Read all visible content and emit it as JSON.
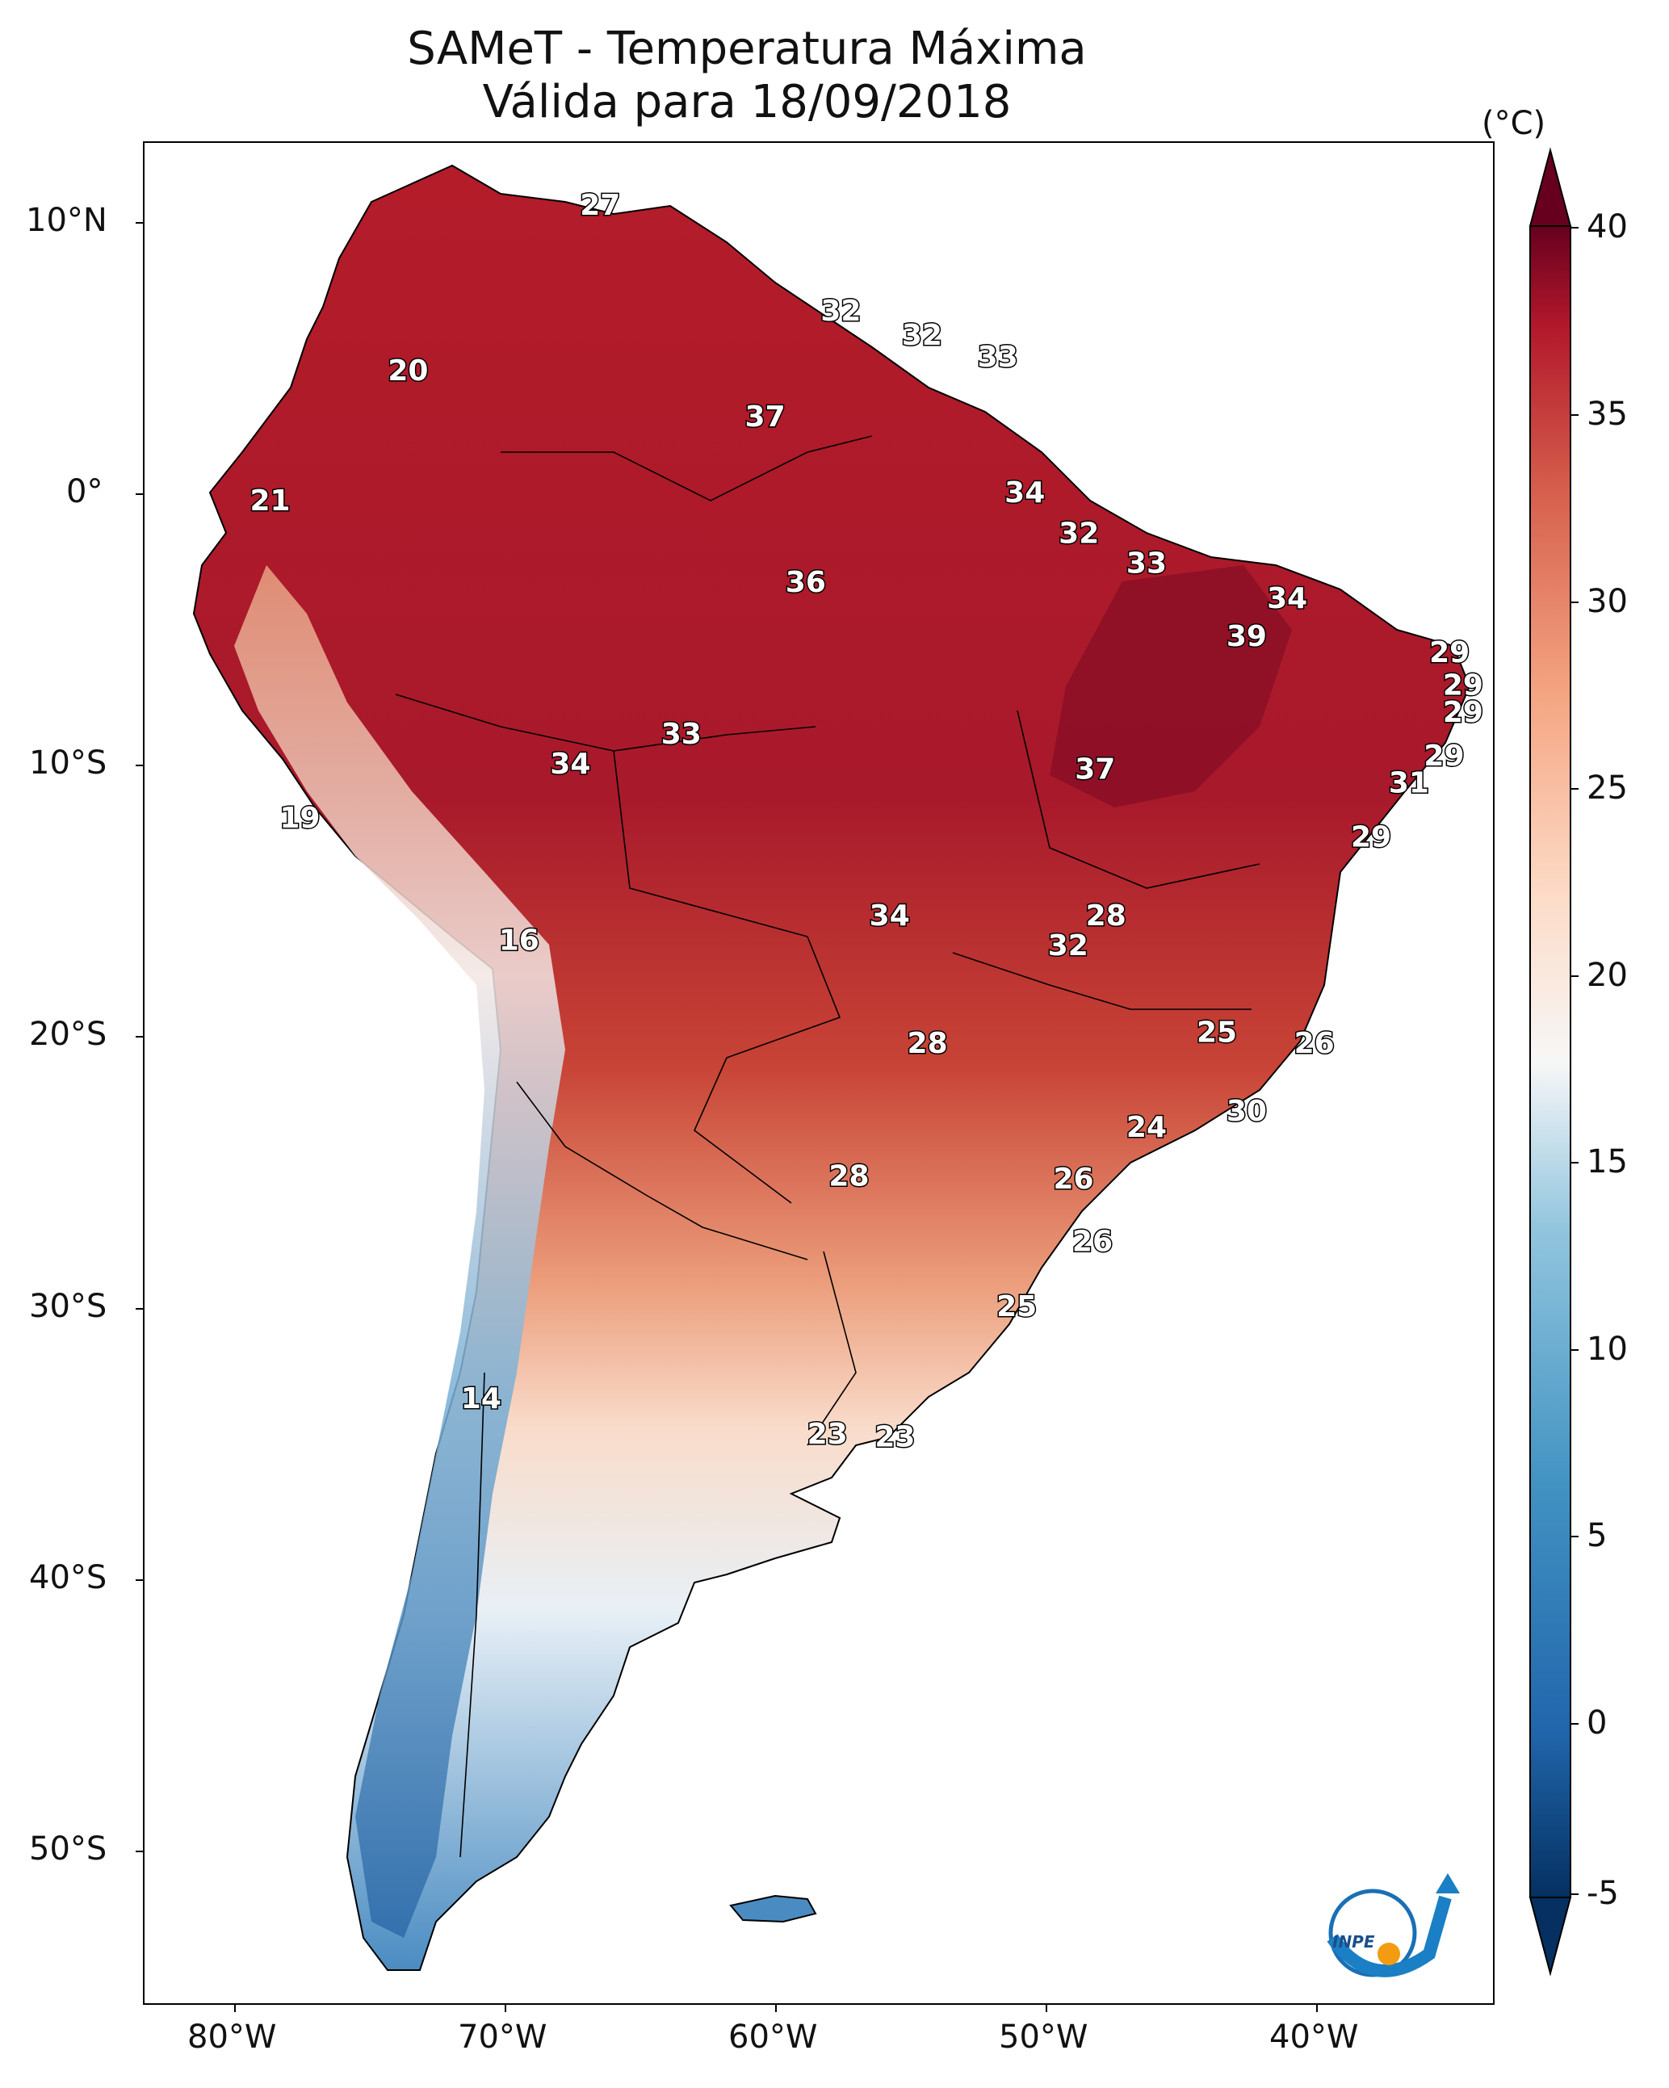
{
  "title": "SAMeT - Temperatura Máxima",
  "subtitle": "Válida para 18/09/2018",
  "colorbar": {
    "unit": "(°C)",
    "ticks": [
      "40",
      "35",
      "30",
      "25",
      "20",
      "15",
      "10",
      "5",
      "0",
      "-5"
    ],
    "range": [
      -5,
      40
    ],
    "colormap": "RdBu_r"
  },
  "axes": {
    "lat_ticks": [
      "10°N",
      "0°",
      "10°S",
      "20°S",
      "30°S",
      "40°S",
      "50°S"
    ],
    "lon_ticks": [
      "80°W",
      "70°W",
      "60°W",
      "50°W",
      "40°W"
    ],
    "lon_range": [
      -83,
      -33
    ],
    "lat_range": [
      -56,
      13
    ]
  },
  "logo_text": "INPE",
  "chart_data": {
    "type": "heatmap",
    "title": "SAMeT - Temperatura Máxima",
    "subtitle": "Válida para 18/09/2018",
    "units": "°C",
    "labels": [
      {
        "value": "27",
        "lon": -66.5,
        "lat": 10.6
      },
      {
        "value": "20",
        "lon": -73.6,
        "lat": 4.5
      },
      {
        "value": "32",
        "lon": -57.6,
        "lat": 6.7
      },
      {
        "value": "32",
        "lon": -54.6,
        "lat": 5.8
      },
      {
        "value": "33",
        "lon": -51.8,
        "lat": 5.0
      },
      {
        "value": "37",
        "lon": -60.4,
        "lat": 2.8
      },
      {
        "value": "34",
        "lon": -50.8,
        "lat": 0.0
      },
      {
        "value": "21",
        "lon": -78.7,
        "lat": -0.3
      },
      {
        "value": "32",
        "lon": -48.8,
        "lat": -1.5
      },
      {
        "value": "33",
        "lon": -46.3,
        "lat": -2.6
      },
      {
        "value": "36",
        "lon": -58.9,
        "lat": -3.3
      },
      {
        "value": "34",
        "lon": -41.1,
        "lat": -3.9
      },
      {
        "value": "39",
        "lon": -42.6,
        "lat": -5.3
      },
      {
        "value": "29",
        "lon": -35.1,
        "lat": -5.9
      },
      {
        "value": "29",
        "lon": -34.6,
        "lat": -7.1
      },
      {
        "value": "29",
        "lon": -34.6,
        "lat": -8.1
      },
      {
        "value": "33",
        "lon": -63.5,
        "lat": -8.9
      },
      {
        "value": "29",
        "lon": -35.3,
        "lat": -9.7
      },
      {
        "value": "34",
        "lon": -67.6,
        "lat": -10.0
      },
      {
        "value": "37",
        "lon": -48.2,
        "lat": -10.2
      },
      {
        "value": "31",
        "lon": -36.6,
        "lat": -10.7
      },
      {
        "value": "19",
        "lon": -77.6,
        "lat": -12.0
      },
      {
        "value": "29",
        "lon": -38.0,
        "lat": -12.7
      },
      {
        "value": "34",
        "lon": -55.8,
        "lat": -15.6
      },
      {
        "value": "28",
        "lon": -47.8,
        "lat": -15.6
      },
      {
        "value": "32",
        "lon": -49.2,
        "lat": -16.7
      },
      {
        "value": "16",
        "lon": -69.5,
        "lat": -16.5
      },
      {
        "value": "25",
        "lon": -43.7,
        "lat": -19.9
      },
      {
        "value": "28",
        "lon": -54.4,
        "lat": -20.3
      },
      {
        "value": "26",
        "lon": -40.1,
        "lat": -20.3
      },
      {
        "value": "30",
        "lon": -42.6,
        "lat": -22.8
      },
      {
        "value": "24",
        "lon": -46.3,
        "lat": -23.4
      },
      {
        "value": "28",
        "lon": -57.3,
        "lat": -25.2
      },
      {
        "value": "26",
        "lon": -49.0,
        "lat": -25.3
      },
      {
        "value": "26",
        "lon": -48.3,
        "lat": -27.6
      },
      {
        "value": "25",
        "lon": -51.1,
        "lat": -30.0
      },
      {
        "value": "14",
        "lon": -70.9,
        "lat": -33.4
      },
      {
        "value": "23",
        "lon": -58.1,
        "lat": -34.7
      },
      {
        "value": "23",
        "lon": -55.6,
        "lat": -34.8
      }
    ]
  }
}
